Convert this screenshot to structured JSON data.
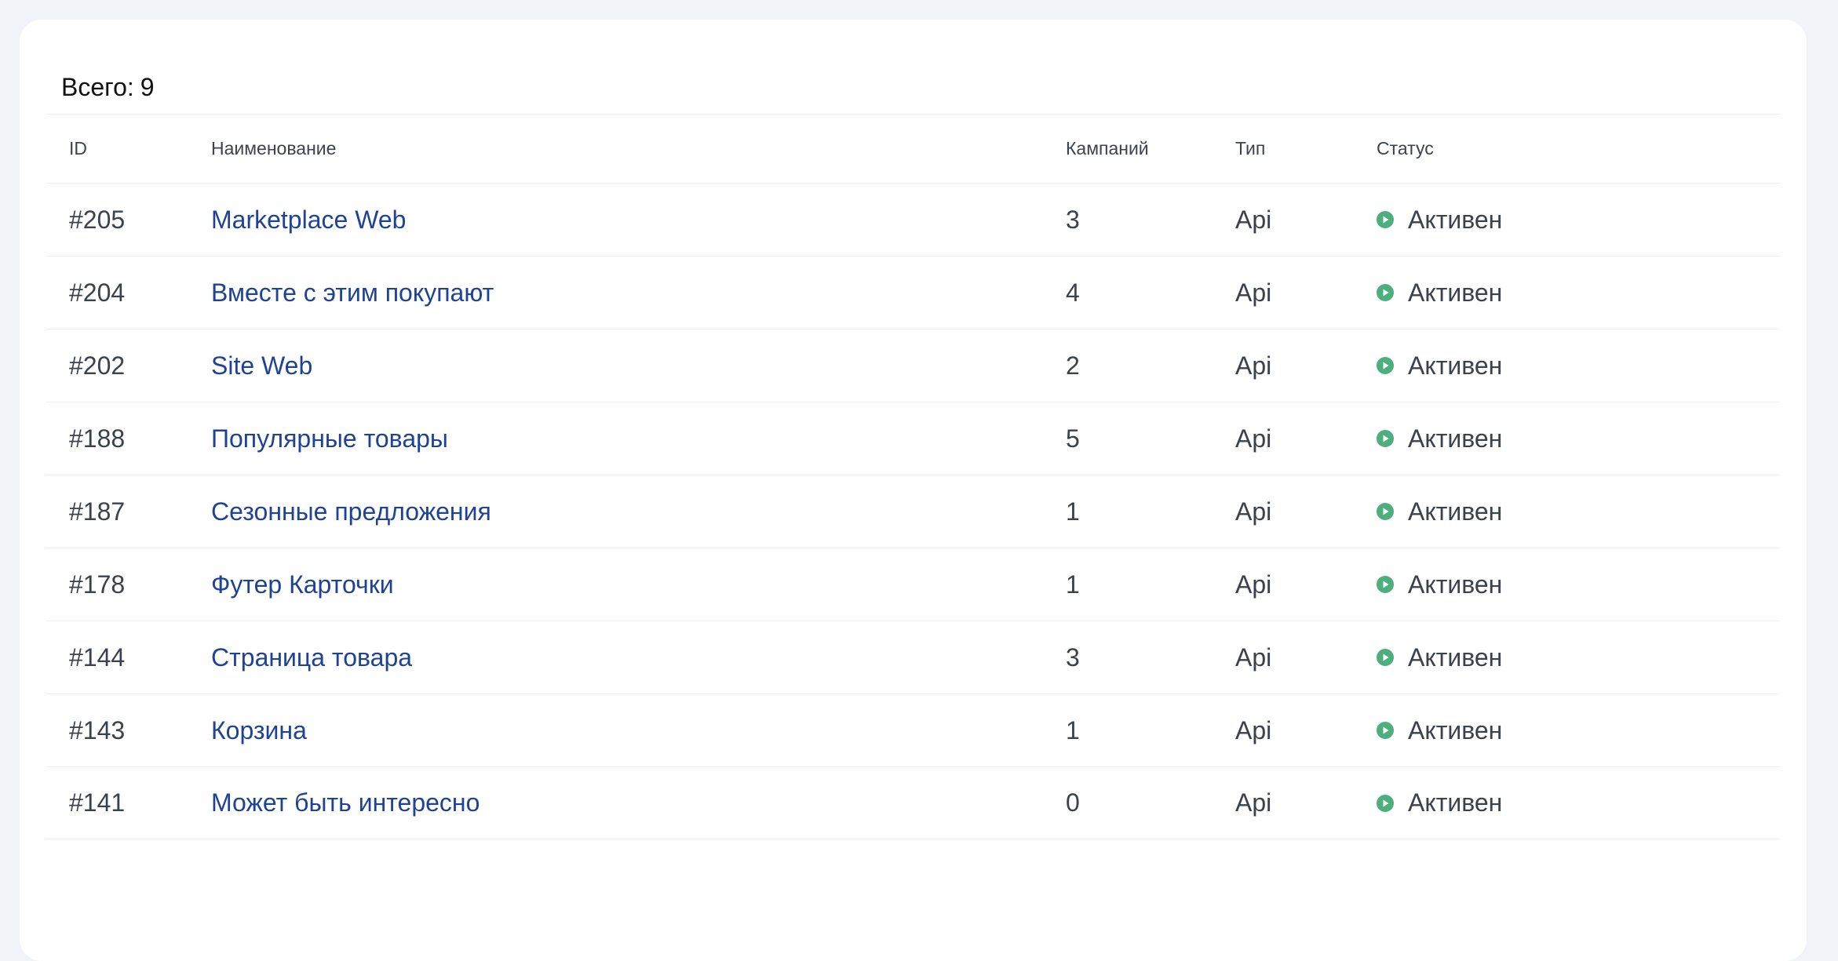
{
  "summary": {
    "total_label": "Всего:",
    "total_value": "9"
  },
  "table": {
    "columns": {
      "id": "ID",
      "name": "Наименование",
      "campaigns": "Кампаний",
      "type": "Тип",
      "status": "Статус"
    },
    "rows": [
      {
        "id": "#205",
        "name": "Marketplace Web",
        "campaigns": "3",
        "type": "Api",
        "status": "Активен"
      },
      {
        "id": "#204",
        "name": "Вместе с этим покупают",
        "campaigns": "4",
        "type": "Api",
        "status": "Активен"
      },
      {
        "id": "#202",
        "name": "Site Web",
        "campaigns": "2",
        "type": "Api",
        "status": "Активен"
      },
      {
        "id": "#188",
        "name": "Популярные товары",
        "campaigns": "5",
        "type": "Api",
        "status": "Активен"
      },
      {
        "id": "#187",
        "name": "Сезонные предложения",
        "campaigns": "1",
        "type": "Api",
        "status": "Активен"
      },
      {
        "id": "#178",
        "name": "Футер Карточки",
        "campaigns": "1",
        "type": "Api",
        "status": "Активен"
      },
      {
        "id": "#144",
        "name": "Страница товара",
        "campaigns": "3",
        "type": "Api",
        "status": "Активен"
      },
      {
        "id": "#143",
        "name": "Корзина",
        "campaigns": "1",
        "type": "Api",
        "status": "Активен"
      },
      {
        "id": "#141",
        "name": "Может быть интересно",
        "campaigns": "0",
        "type": "Api",
        "status": "Активен"
      }
    ]
  },
  "icons": {
    "status": "play-circle-icon"
  },
  "colors": {
    "link": "#1f4394",
    "status_active": "#4caf7d",
    "background": "#f0f3f7"
  }
}
